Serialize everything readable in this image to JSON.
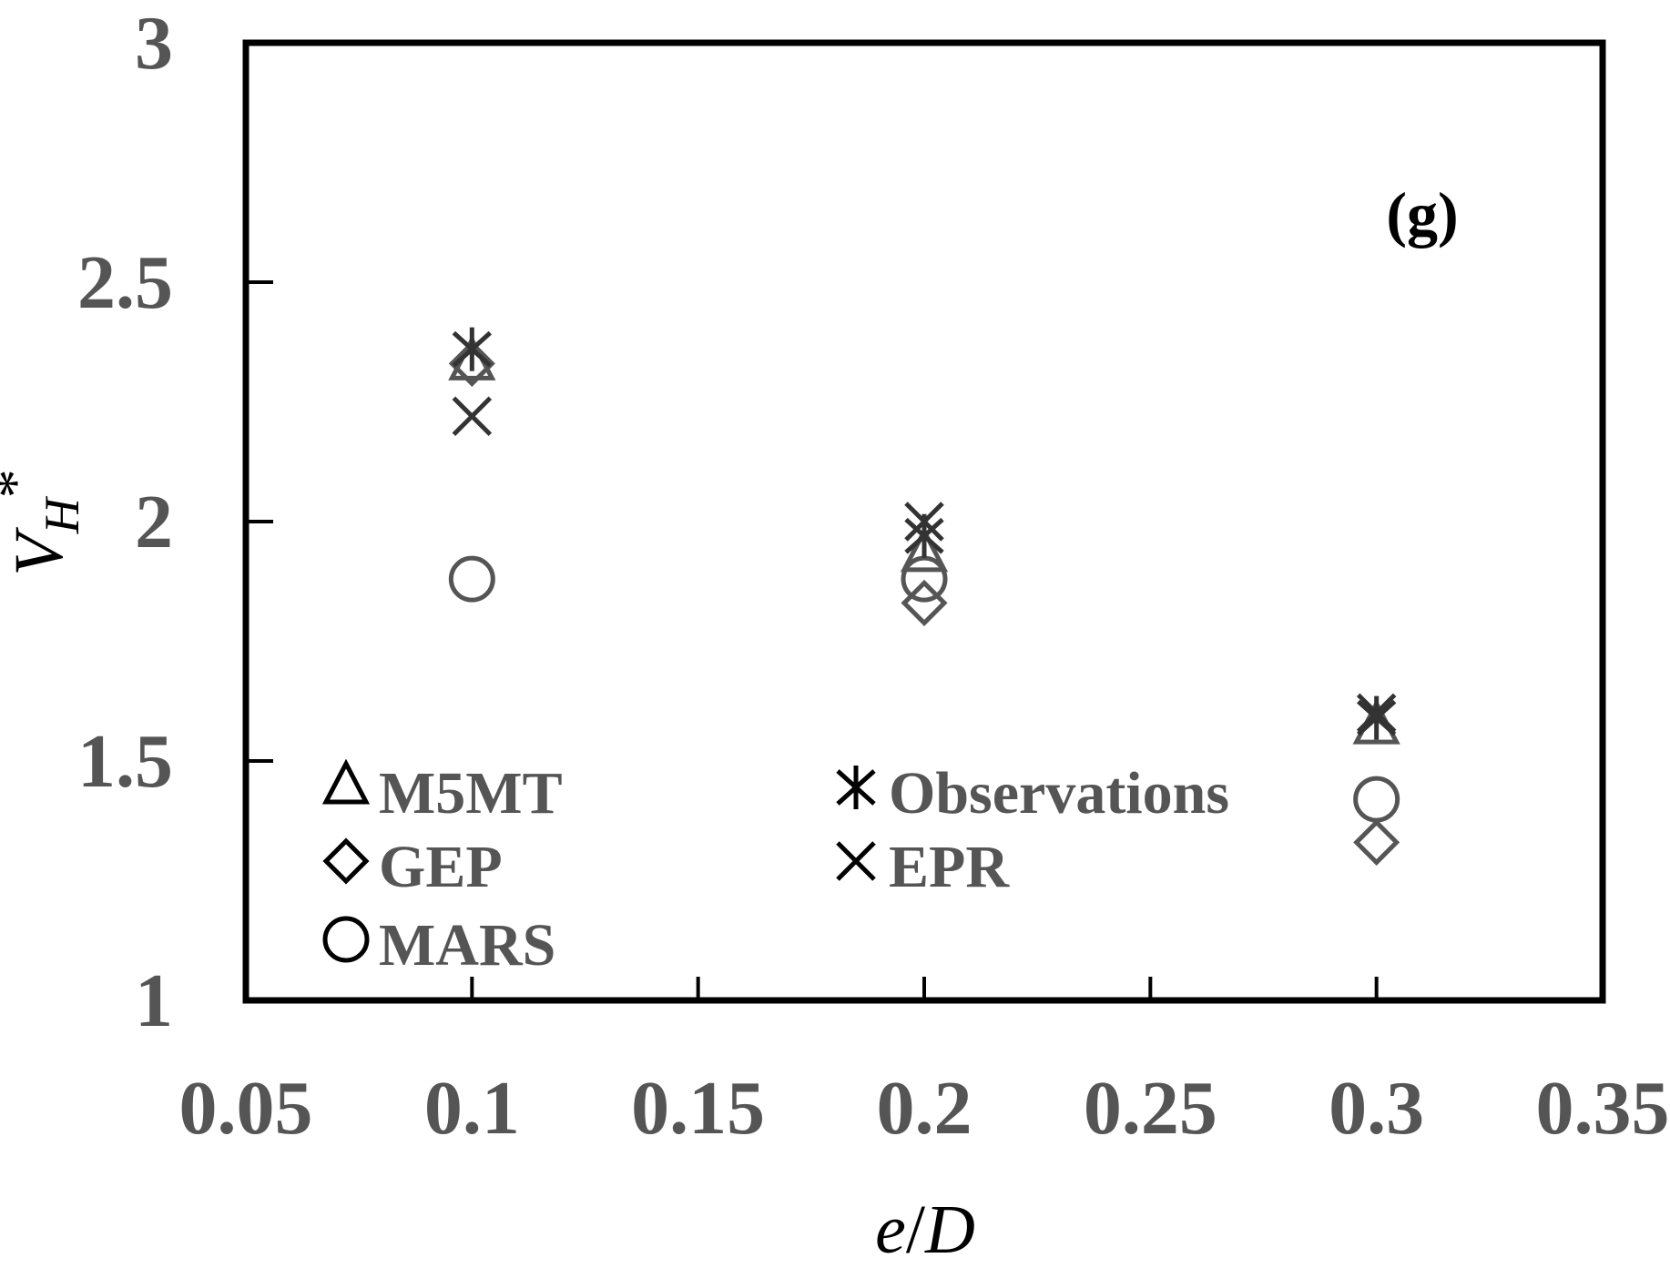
{
  "chart_data": {
    "type": "scatter",
    "xlabel_main": "e",
    "xlabel_sep": "/",
    "xlabel_end": "D",
    "ylabel_main": "V",
    "ylabel_sub": "H",
    "ylabel_sup": "*",
    "panel_label": "(g)",
    "xlim": [
      0.05,
      0.35
    ],
    "ylim": [
      1,
      3
    ],
    "x_ticks": [
      0.05,
      0.1,
      0.15,
      0.2,
      0.25,
      0.3,
      0.35
    ],
    "x_tick_labels": [
      "0.05",
      "0.1",
      "0.15",
      "0.2",
      "0.25",
      "0.3",
      "0.35"
    ],
    "y_ticks": [
      1,
      1.5,
      2,
      2.5,
      3
    ],
    "y_tick_labels": [
      "1",
      "1.5",
      "2",
      "2.5",
      "3"
    ],
    "grid": false,
    "legend_position": "bottom-left",
    "series": [
      {
        "name": "M5MT",
        "marker": "triangle",
        "color": "#555555",
        "x": [
          0.1,
          0.2,
          0.3
        ],
        "y": [
          2.33,
          1.93,
          1.57
        ]
      },
      {
        "name": "GEP",
        "marker": "diamond",
        "color": "#555555",
        "x": [
          0.1,
          0.2,
          0.3
        ],
        "y": [
          2.33,
          1.83,
          1.33
        ]
      },
      {
        "name": "MARS",
        "marker": "circle",
        "color": "#555555",
        "x": [
          0.1,
          0.2,
          0.3
        ],
        "y": [
          1.88,
          1.88,
          1.42
        ]
      },
      {
        "name": "Observations",
        "marker": "asterisk",
        "color": "#333333",
        "x": [
          0.1,
          0.2,
          0.3
        ],
        "y": [
          2.36,
          1.97,
          1.59
        ]
      },
      {
        "name": "EPR",
        "marker": "x",
        "color": "#333333",
        "x": [
          0.1,
          0.2,
          0.3
        ],
        "y": [
          2.22,
          2.0,
          1.6
        ]
      }
    ]
  }
}
